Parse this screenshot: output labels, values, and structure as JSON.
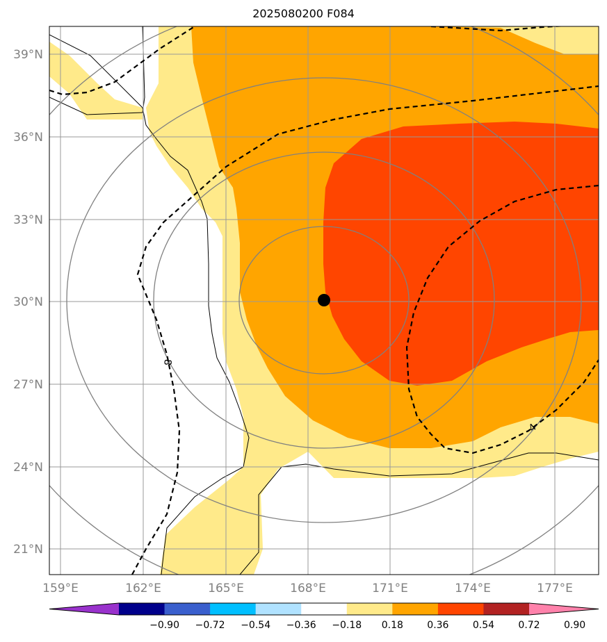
{
  "title": "2025080200 F084",
  "map": {
    "lon_ticks": [
      "159°E",
      "162°E",
      "165°E",
      "168°E",
      "171°E",
      "174°E",
      "177°E"
    ],
    "lat_ticks": [
      "39°N",
      "36°N",
      "33°N",
      "30°N",
      "27°N",
      "24°N",
      "21°N"
    ],
    "lon_range": [
      158.6,
      178.6
    ],
    "lat_range": [
      20.1,
      40.1
    ],
    "center_marker": {
      "lon": 168.6,
      "lat": 30.05
    },
    "contour_labels": [
      "8",
      "4"
    ],
    "colors": {
      "grid": "#999999",
      "range_rings": "#808080",
      "coastline": "#000000",
      "fill_018_036": "#ffea8a",
      "fill_036_054": "#ffa500",
      "fill_054_072": "#ff4500",
      "marker": "#000000"
    }
  },
  "colorbar": {
    "labels": [
      "−0.90",
      "−0.72",
      "−0.54",
      "−0.36",
      "−0.18",
      "0.18",
      "0.36",
      "0.54",
      "0.72",
      "0.90"
    ],
    "colors": [
      "#9932cc",
      "#00008b",
      "#3a5fcd",
      "#00bfff",
      "#b0e2ff",
      "#ffffff",
      "#ffea8a",
      "#ffa500",
      "#ff4500",
      "#b22222",
      "#ff82ab"
    ]
  }
}
